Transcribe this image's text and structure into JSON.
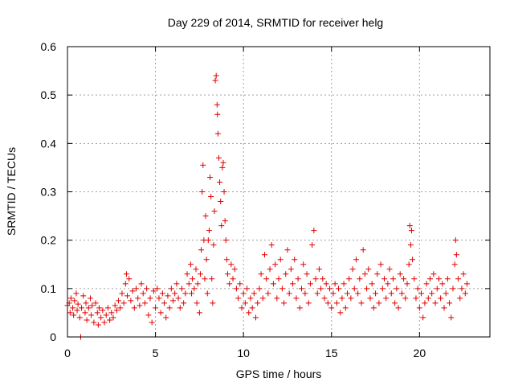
{
  "chart_data": {
    "type": "scatter",
    "title": "Day 229 of 2014, SRMTID for receiver helg",
    "xlabel": "GPS time / hours",
    "ylabel": "SRMTID / TECUs",
    "xlim": [
      0,
      24
    ],
    "ylim": [
      0,
      0.6
    ],
    "xticks": [
      0,
      5,
      10,
      15,
      20
    ],
    "xtick_labels": [
      "0",
      "5",
      "10",
      "15",
      "20"
    ],
    "yticks": [
      0,
      0.1,
      0.2,
      0.3,
      0.4,
      0.5,
      0.6
    ],
    "ytick_labels": [
      "0",
      "0.1",
      "0.2",
      "0.3",
      "0.4",
      "0.5",
      "0.6"
    ],
    "grid": true,
    "marker": "+",
    "color": "#e00000",
    "series": [
      {
        "name": "SRMTID",
        "points": [
          [
            0.0,
            0.065
          ],
          [
            0.1,
            0.07
          ],
          [
            0.15,
            0.05
          ],
          [
            0.2,
            0.08
          ],
          [
            0.3,
            0.06
          ],
          [
            0.35,
            0.045
          ],
          [
            0.4,
            0.075
          ],
          [
            0.5,
            0.09
          ],
          [
            0.55,
            0.055
          ],
          [
            0.6,
            0.068
          ],
          [
            0.7,
            0.04
          ],
          [
            0.75,
            0.0
          ],
          [
            0.8,
            0.06
          ],
          [
            0.9,
            0.085
          ],
          [
            1.0,
            0.05
          ],
          [
            1.05,
            0.07
          ],
          [
            1.1,
            0.035
          ],
          [
            1.2,
            0.06
          ],
          [
            1.3,
            0.08
          ],
          [
            1.35,
            0.045
          ],
          [
            1.4,
            0.065
          ],
          [
            1.5,
            0.03
          ],
          [
            1.6,
            0.07
          ],
          [
            1.7,
            0.05
          ],
          [
            1.75,
            0.025
          ],
          [
            1.8,
            0.06
          ],
          [
            1.9,
            0.04
          ],
          [
            2.0,
            0.055
          ],
          [
            2.1,
            0.03
          ],
          [
            2.2,
            0.045
          ],
          [
            2.3,
            0.06
          ],
          [
            2.4,
            0.035
          ],
          [
            2.5,
            0.05
          ],
          [
            2.6,
            0.04
          ],
          [
            2.7,
            0.065
          ],
          [
            2.8,
            0.055
          ],
          [
            2.9,
            0.075
          ],
          [
            3.0,
            0.06
          ],
          [
            3.1,
            0.09
          ],
          [
            3.2,
            0.07
          ],
          [
            3.3,
            0.11
          ],
          [
            3.35,
            0.13
          ],
          [
            3.4,
            0.085
          ],
          [
            3.5,
            0.12
          ],
          [
            3.6,
            0.075
          ],
          [
            3.7,
            0.095
          ],
          [
            3.8,
            0.06
          ],
          [
            3.9,
            0.1
          ],
          [
            4.0,
            0.08
          ],
          [
            4.1,
            0.065
          ],
          [
            4.2,
            0.11
          ],
          [
            4.3,
            0.09
          ],
          [
            4.4,
            0.07
          ],
          [
            4.5,
            0.1
          ],
          [
            4.6,
            0.045
          ],
          [
            4.7,
            0.08
          ],
          [
            4.8,
            0.03
          ],
          [
            4.9,
            0.095
          ],
          [
            5.0,
            0.06
          ],
          [
            5.1,
            0.1
          ],
          [
            5.2,
            0.08
          ],
          [
            5.3,
            0.05
          ],
          [
            5.4,
            0.09
          ],
          [
            5.5,
            0.07
          ],
          [
            5.6,
            0.04
          ],
          [
            5.7,
            0.085
          ],
          [
            5.8,
            0.06
          ],
          [
            5.9,
            0.1
          ],
          [
            6.0,
            0.075
          ],
          [
            6.1,
            0.09
          ],
          [
            6.2,
            0.11
          ],
          [
            6.3,
            0.08
          ],
          [
            6.4,
            0.06
          ],
          [
            6.5,
            0.1
          ],
          [
            6.6,
            0.07
          ],
          [
            6.7,
            0.09
          ],
          [
            6.8,
            0.13
          ],
          [
            6.9,
            0.11
          ],
          [
            7.0,
            0.15
          ],
          [
            7.05,
            0.09
          ],
          [
            7.1,
            0.12
          ],
          [
            7.2,
            0.1
          ],
          [
            7.3,
            0.14
          ],
          [
            7.35,
            0.07
          ],
          [
            7.4,
            0.11
          ],
          [
            7.5,
            0.05
          ],
          [
            7.55,
            0.13
          ],
          [
            7.6,
            0.18
          ],
          [
            7.65,
            0.3
          ],
          [
            7.7,
            0.355
          ],
          [
            7.75,
            0.2
          ],
          [
            7.8,
            0.12
          ],
          [
            7.85,
            0.25
          ],
          [
            7.9,
            0.16
          ],
          [
            7.95,
            0.09
          ],
          [
            8.0,
            0.2
          ],
          [
            8.05,
            0.22
          ],
          [
            8.1,
            0.33
          ],
          [
            8.15,
            0.29
          ],
          [
            8.2,
            0.12
          ],
          [
            8.25,
            0.07
          ],
          [
            8.3,
            0.19
          ],
          [
            8.35,
            0.26
          ],
          [
            8.4,
            0.53
          ],
          [
            8.45,
            0.54
          ],
          [
            8.5,
            0.48
          ],
          [
            8.52,
            0.46
          ],
          [
            8.55,
            0.42
          ],
          [
            8.6,
            0.37
          ],
          [
            8.65,
            0.32
          ],
          [
            8.7,
            0.28
          ],
          [
            8.75,
            0.23
          ],
          [
            8.8,
            0.35
          ],
          [
            8.85,
            0.36
          ],
          [
            8.9,
            0.3
          ],
          [
            8.95,
            0.24
          ],
          [
            9.0,
            0.2
          ],
          [
            9.05,
            0.16
          ],
          [
            9.1,
            0.13
          ],
          [
            9.2,
            0.11
          ],
          [
            9.3,
            0.15
          ],
          [
            9.4,
            0.12
          ],
          [
            9.5,
            0.14
          ],
          [
            9.6,
            0.1
          ],
          [
            9.7,
            0.08
          ],
          [
            9.8,
            0.11
          ],
          [
            9.9,
            0.06
          ],
          [
            10.0,
            0.09
          ],
          [
            10.1,
            0.07
          ],
          [
            10.2,
            0.1
          ],
          [
            10.3,
            0.05
          ],
          [
            10.4,
            0.08
          ],
          [
            10.5,
            0.06
          ],
          [
            10.6,
            0.09
          ],
          [
            10.7,
            0.04
          ],
          [
            10.8,
            0.07
          ],
          [
            10.9,
            0.1
          ],
          [
            11.0,
            0.13
          ],
          [
            11.1,
            0.08
          ],
          [
            11.2,
            0.17
          ],
          [
            11.3,
            0.12
          ],
          [
            11.4,
            0.09
          ],
          [
            11.5,
            0.14
          ],
          [
            11.6,
            0.19
          ],
          [
            11.7,
            0.11
          ],
          [
            11.8,
            0.15
          ],
          [
            11.9,
            0.08
          ],
          [
            12.0,
            0.12
          ],
          [
            12.1,
            0.16
          ],
          [
            12.2,
            0.1
          ],
          [
            12.3,
            0.07
          ],
          [
            12.4,
            0.13
          ],
          [
            12.5,
            0.18
          ],
          [
            12.6,
            0.09
          ],
          [
            12.7,
            0.14
          ],
          [
            12.8,
            0.11
          ],
          [
            12.9,
            0.16
          ],
          [
            13.0,
            0.08
          ],
          [
            13.1,
            0.12
          ],
          [
            13.2,
            0.06
          ],
          [
            13.3,
            0.1
          ],
          [
            13.4,
            0.15
          ],
          [
            13.5,
            0.09
          ],
          [
            13.6,
            0.13
          ],
          [
            13.7,
            0.07
          ],
          [
            13.8,
            0.11
          ],
          [
            13.9,
            0.19
          ],
          [
            14.0,
            0.22
          ],
          [
            14.1,
            0.12
          ],
          [
            14.2,
            0.09
          ],
          [
            14.3,
            0.14
          ],
          [
            14.4,
            0.1
          ],
          [
            14.5,
            0.12
          ],
          [
            14.6,
            0.08
          ],
          [
            14.7,
            0.11
          ],
          [
            14.8,
            0.07
          ],
          [
            14.9,
            0.1
          ],
          [
            15.0,
            0.06
          ],
          [
            15.1,
            0.09
          ],
          [
            15.2,
            0.11
          ],
          [
            15.3,
            0.07
          ],
          [
            15.4,
            0.1
          ],
          [
            15.5,
            0.05
          ],
          [
            15.6,
            0.08
          ],
          [
            15.7,
            0.11
          ],
          [
            15.8,
            0.06
          ],
          [
            15.9,
            0.09
          ],
          [
            16.0,
            0.12
          ],
          [
            16.1,
            0.08
          ],
          [
            16.2,
            0.14
          ],
          [
            16.3,
            0.1
          ],
          [
            16.4,
            0.16
          ],
          [
            16.5,
            0.09
          ],
          [
            16.6,
            0.12
          ],
          [
            16.7,
            0.07
          ],
          [
            16.8,
            0.18
          ],
          [
            16.9,
            0.13
          ],
          [
            17.0,
            0.1
          ],
          [
            17.1,
            0.14
          ],
          [
            17.2,
            0.08
          ],
          [
            17.3,
            0.11
          ],
          [
            17.4,
            0.06
          ],
          [
            17.5,
            0.09
          ],
          [
            17.6,
            0.13
          ],
          [
            17.7,
            0.07
          ],
          [
            17.8,
            0.15
          ],
          [
            17.9,
            0.1
          ],
          [
            18.0,
            0.12
          ],
          [
            18.1,
            0.08
          ],
          [
            18.2,
            0.11
          ],
          [
            18.3,
            0.14
          ],
          [
            18.4,
            0.09
          ],
          [
            18.5,
            0.12
          ],
          [
            18.6,
            0.07
          ],
          [
            18.7,
            0.1
          ],
          [
            18.8,
            0.06
          ],
          [
            18.9,
            0.13
          ],
          [
            19.0,
            0.09
          ],
          [
            19.1,
            0.12
          ],
          [
            19.2,
            0.08
          ],
          [
            19.3,
            0.11
          ],
          [
            19.4,
            0.15
          ],
          [
            19.45,
            0.23
          ],
          [
            19.5,
            0.19
          ],
          [
            19.55,
            0.22
          ],
          [
            19.6,
            0.16
          ],
          [
            19.7,
            0.12
          ],
          [
            19.8,
            0.08
          ],
          [
            19.9,
            0.1
          ],
          [
            20.0,
            0.06
          ],
          [
            20.1,
            0.09
          ],
          [
            20.2,
            0.04
          ],
          [
            20.3,
            0.07
          ],
          [
            20.4,
            0.11
          ],
          [
            20.5,
            0.08
          ],
          [
            20.6,
            0.12
          ],
          [
            20.7,
            0.09
          ],
          [
            20.8,
            0.13
          ],
          [
            20.9,
            0.07
          ],
          [
            21.0,
            0.1
          ],
          [
            21.1,
            0.12
          ],
          [
            21.2,
            0.08
          ],
          [
            21.3,
            0.11
          ],
          [
            21.4,
            0.06
          ],
          [
            21.5,
            0.09
          ],
          [
            21.6,
            0.12
          ],
          [
            21.7,
            0.07
          ],
          [
            21.8,
            0.04
          ],
          [
            21.9,
            0.1
          ],
          [
            22.0,
            0.15
          ],
          [
            22.05,
            0.2
          ],
          [
            22.1,
            0.17
          ],
          [
            22.2,
            0.12
          ],
          [
            22.3,
            0.08
          ],
          [
            22.4,
            0.1
          ],
          [
            22.5,
            0.13
          ],
          [
            22.6,
            0.09
          ],
          [
            22.7,
            0.11
          ]
        ]
      }
    ]
  }
}
